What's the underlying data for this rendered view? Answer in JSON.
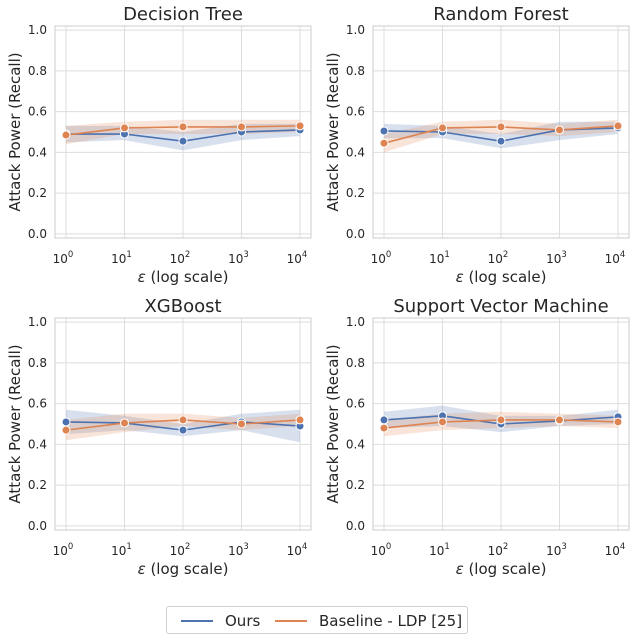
{
  "chart_data": {
    "type": "line",
    "x": [
      1,
      10,
      100,
      1000,
      10000
    ],
    "xtick_labels": [
      {
        "base": "10",
        "exp": "0"
      },
      {
        "base": "10",
        "exp": "1"
      },
      {
        "base": "10",
        "exp": "2"
      },
      {
        "base": "10",
        "exp": "3"
      },
      {
        "base": "10",
        "exp": "4"
      }
    ],
    "ytick_labels": [
      "0.0",
      "0.2",
      "0.4",
      "0.6",
      "0.8",
      "1.0"
    ],
    "yticks": [
      0.0,
      0.2,
      0.4,
      0.6,
      0.8,
      1.0
    ],
    "ylim": [
      -0.02,
      1.02
    ],
    "xlabel": "ε (log scale)",
    "ylabel": "Attack Power (Recall)",
    "xscale": "log",
    "grid": true,
    "legend_position": "bottom-center",
    "series_styles": [
      {
        "name": "Ours",
        "color": "#4c72b0"
      },
      {
        "name": "Baseline - LDP [25]",
        "color": "#dd8452"
      }
    ],
    "subplots": [
      {
        "title": "Decision Tree",
        "series": [
          {
            "name": "Ours",
            "values": [
              0.49,
              0.49,
              0.455,
              0.5,
              0.51
            ],
            "lower": [
              0.45,
              0.46,
              0.41,
              0.46,
              0.48
            ],
            "upper": [
              0.53,
              0.53,
              0.5,
              0.54,
              0.54
            ]
          },
          {
            "name": "Baseline - LDP [25]",
            "values": [
              0.485,
              0.52,
              0.525,
              0.525,
              0.53
            ],
            "lower": [
              0.44,
              0.49,
              0.49,
              0.49,
              0.5
            ],
            "upper": [
              0.53,
              0.55,
              0.56,
              0.56,
              0.56
            ]
          }
        ]
      },
      {
        "title": "Random Forest",
        "series": [
          {
            "name": "Ours",
            "values": [
              0.505,
              0.5,
              0.455,
              0.51,
              0.52
            ],
            "lower": [
              0.47,
              0.47,
              0.42,
              0.46,
              0.49
            ],
            "upper": [
              0.54,
              0.53,
              0.49,
              0.55,
              0.55
            ]
          },
          {
            "name": "Baseline - LDP [25]",
            "values": [
              0.445,
              0.52,
              0.525,
              0.51,
              0.53
            ],
            "lower": [
              0.4,
              0.49,
              0.49,
              0.48,
              0.5
            ],
            "upper": [
              0.49,
              0.55,
              0.56,
              0.54,
              0.56
            ]
          }
        ]
      },
      {
        "title": "XGBoost",
        "series": [
          {
            "name": "Ours",
            "values": [
              0.51,
              0.505,
              0.47,
              0.51,
              0.49
            ],
            "lower": [
              0.45,
              0.47,
              0.44,
              0.47,
              0.41
            ],
            "upper": [
              0.57,
              0.54,
              0.5,
              0.55,
              0.57
            ]
          },
          {
            "name": "Baseline - LDP [25]",
            "values": [
              0.47,
              0.505,
              0.52,
              0.5,
              0.52
            ],
            "lower": [
              0.42,
              0.46,
              0.49,
              0.47,
              0.49
            ],
            "upper": [
              0.52,
              0.55,
              0.55,
              0.53,
              0.55
            ]
          }
        ]
      },
      {
        "title": "Support Vector Machine",
        "series": [
          {
            "name": "Ours",
            "values": [
              0.52,
              0.54,
              0.5,
              0.515,
              0.535
            ],
            "lower": [
              0.48,
              0.49,
              0.46,
              0.49,
              0.5
            ],
            "upper": [
              0.56,
              0.59,
              0.54,
              0.54,
              0.57
            ]
          },
          {
            "name": "Baseline - LDP [25]",
            "values": [
              0.48,
              0.51,
              0.52,
              0.52,
              0.51
            ],
            "lower": [
              0.44,
              0.47,
              0.48,
              0.49,
              0.48
            ],
            "upper": [
              0.52,
              0.55,
              0.56,
              0.55,
              0.54
            ]
          }
        ]
      }
    ]
  }
}
